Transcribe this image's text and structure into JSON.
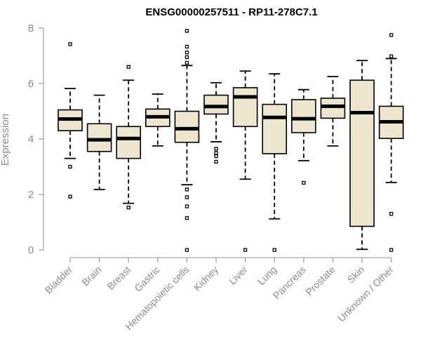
{
  "chart_data": {
    "type": "boxplot",
    "title": "ENSG00000257511 - RP11-278C7.1",
    "ylabel": "Expression",
    "xlabel": "",
    "ylim": [
      0,
      8
    ],
    "yticks": [
      0,
      2,
      4,
      6,
      8
    ],
    "box_color": "#ede6cc",
    "categories": [
      "Bladder",
      "Brain",
      "Breast",
      "Gastric",
      "Hematopoietic cells",
      "Kidney",
      "Liver",
      "Lung",
      "Pancreas",
      "Prostate",
      "Skin",
      "Unknown / Other"
    ],
    "boxes": [
      {
        "whisker_low": 3.3,
        "q1": 4.3,
        "median": 4.72,
        "q3": 5.05,
        "whisker_high": 5.82,
        "outliers": [
          7.42,
          3.0,
          1.92
        ]
      },
      {
        "whisker_low": 2.18,
        "q1": 3.55,
        "median": 3.97,
        "q3": 4.55,
        "whisker_high": 5.58,
        "outliers": []
      },
      {
        "whisker_low": 1.68,
        "q1": 3.3,
        "median": 4.02,
        "q3": 4.45,
        "whisker_high": 6.12,
        "outliers": [
          6.6,
          1.53
        ]
      },
      {
        "whisker_low": 3.75,
        "q1": 4.45,
        "median": 4.8,
        "q3": 5.08,
        "whisker_high": 5.62,
        "outliers": []
      },
      {
        "whisker_low": 2.35,
        "q1": 3.88,
        "median": 4.37,
        "q3": 5.0,
        "whisker_high": 6.65,
        "outliers": [
          7.9,
          7.33,
          7.12,
          6.95,
          6.75,
          2.18,
          1.9,
          1.57,
          1.15,
          0.0
        ]
      },
      {
        "whisker_low": 3.9,
        "q1": 4.9,
        "median": 5.17,
        "q3": 5.58,
        "whisker_high": 6.03,
        "outliers": [
          3.65,
          3.5,
          3.38,
          3.18
        ]
      },
      {
        "whisker_low": 2.55,
        "q1": 4.45,
        "median": 5.52,
        "q3": 5.85,
        "whisker_high": 6.45,
        "outliers": [
          0.0
        ]
      },
      {
        "whisker_low": 1.12,
        "q1": 3.47,
        "median": 4.78,
        "q3": 5.25,
        "whisker_high": 6.35,
        "outliers": [
          0.0
        ]
      },
      {
        "whisker_low": 3.22,
        "q1": 4.23,
        "median": 4.73,
        "q3": 5.42,
        "whisker_high": 5.78,
        "outliers": [
          2.42
        ]
      },
      {
        "whisker_low": 3.75,
        "q1": 4.75,
        "median": 5.18,
        "q3": 5.47,
        "whisker_high": 6.25,
        "outliers": []
      },
      {
        "whisker_low": 0.02,
        "q1": 0.85,
        "median": 4.95,
        "q3": 6.12,
        "whisker_high": 6.83,
        "outliers": []
      },
      {
        "whisker_low": 2.43,
        "q1": 4.02,
        "median": 4.62,
        "q3": 5.18,
        "whisker_high": 6.9,
        "outliers": [
          7.75,
          6.98,
          1.3,
          0.0
        ]
      }
    ],
    "grid": false,
    "legend": "none"
  }
}
